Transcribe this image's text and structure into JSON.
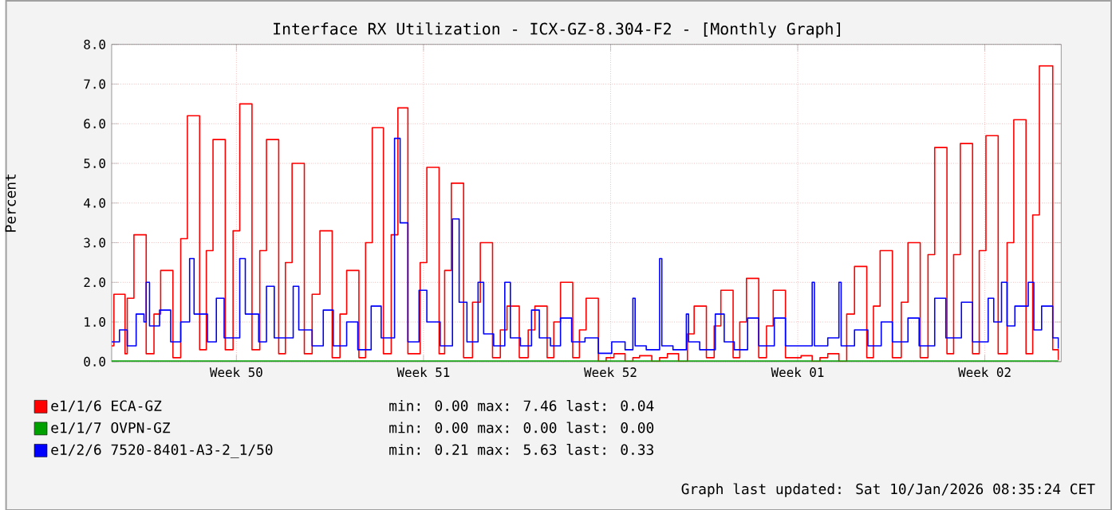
{
  "chart_data": {
    "type": "step",
    "title": "Interface RX Utilization - ICX-GZ-8.304-F2 - [Monthly Graph]",
    "ylabel": "Percent",
    "xlim": [
      "2025-12-05T20:00",
      "2026-01-10T08:35"
    ],
    "ylim": [
      0,
      8
    ],
    "xticks": [
      {
        "value": "2025-12-10T12:00",
        "label": "Week 50"
      },
      {
        "value": "2025-12-17T12:00",
        "label": "Week 51"
      },
      {
        "value": "2025-12-24T12:00",
        "label": "Week 52"
      },
      {
        "value": "2025-12-31T12:00",
        "label": "Week 01"
      },
      {
        "value": "2026-01-07T12:00",
        "label": "Week 02"
      }
    ],
    "yticks": [
      {
        "value": 0,
        "label": "0.0"
      },
      {
        "value": 1,
        "label": "1.0"
      },
      {
        "value": 2,
        "label": "2.0"
      },
      {
        "value": 3,
        "label": "3.0"
      },
      {
        "value": 4,
        "label": "4.0"
      },
      {
        "value": 5,
        "label": "5.0"
      },
      {
        "value": 6,
        "label": "6.0"
      },
      {
        "value": 7,
        "label": "7.0"
      },
      {
        "value": 8,
        "label": "8.0"
      }
    ],
    "grid": true,
    "legend": "bottom",
    "series": [
      {
        "name": "e1/1/6 ECA-GZ",
        "color": "#ff0000",
        "x": [
          "2025-12-05T20:00",
          "2025-12-05T22:00",
          "2025-12-06T08:00",
          "2025-12-06T10:00",
          "2025-12-06T16:00",
          "2025-12-07T03:00",
          "2025-12-07T10:00",
          "2025-12-07T16:00",
          "2025-12-08T03:00",
          "2025-12-08T10:00",
          "2025-12-08T16:00",
          "2025-12-09T03:00",
          "2025-12-09T09:00",
          "2025-12-09T15:00",
          "2025-12-10T02:00",
          "2025-12-10T09:00",
          "2025-12-10T15:00",
          "2025-12-11T02:00",
          "2025-12-11T09:00",
          "2025-12-11T15:00",
          "2025-12-12T02:00",
          "2025-12-12T08:00",
          "2025-12-12T14:00",
          "2025-12-13T01:00",
          "2025-12-13T08:00",
          "2025-12-13T15:00",
          "2025-12-14T02:00",
          "2025-12-14T09:00",
          "2025-12-14T15:00",
          "2025-12-15T02:00",
          "2025-12-15T08:00",
          "2025-12-15T14:00",
          "2025-12-16T00:00",
          "2025-12-16T07:00",
          "2025-12-16T13:00",
          "2025-12-16T22:00",
          "2025-12-17T09:00",
          "2025-12-17T15:00",
          "2025-12-18T02:00",
          "2025-12-18T07:00",
          "2025-12-18T13:00",
          "2025-12-19T00:00",
          "2025-12-19T08:00",
          "2025-12-19T15:00",
          "2025-12-20T02:00",
          "2025-12-20T09:00",
          "2025-12-20T15:00",
          "2025-12-21T02:00",
          "2025-12-21T10:00",
          "2025-12-21T16:00",
          "2025-12-22T03:00",
          "2025-12-22T09:00",
          "2025-12-22T15:00",
          "2025-12-23T02:00",
          "2025-12-23T08:00",
          "2025-12-23T14:00",
          "2025-12-24T01:00",
          "2025-12-24T08:00",
          "2025-12-24T15:00",
          "2025-12-25T01:00",
          "2025-12-25T08:00",
          "2025-12-25T14:00",
          "2025-12-26T01:00",
          "2025-12-26T08:00",
          "2025-12-26T15:00",
          "2025-12-27T01:00",
          "2025-12-27T09:00",
          "2025-12-27T15:00",
          "2025-12-28T02:00",
          "2025-12-28T09:00",
          "2025-12-28T15:00",
          "2025-12-29T02:00",
          "2025-12-29T08:00",
          "2025-12-29T14:00",
          "2025-12-30T01:00",
          "2025-12-30T08:00",
          "2025-12-30T14:00",
          "2025-12-31T01:00",
          "2025-12-31T08:00",
          "2025-12-31T15:00",
          "2026-01-01T01:00",
          "2026-01-01T08:00",
          "2026-01-01T15:00",
          "2026-01-02T01:00",
          "2026-01-02T08:00",
          "2026-01-02T15:00",
          "2026-01-03T02:00",
          "2026-01-03T08:00",
          "2026-01-03T14:00",
          "2026-01-04T01:00",
          "2026-01-04T09:00",
          "2026-01-04T15:00",
          "2026-01-05T02:00",
          "2026-01-05T09:00",
          "2026-01-05T15:00",
          "2026-01-06T02:00",
          "2026-01-06T08:00",
          "2026-01-06T14:00",
          "2026-01-07T01:00",
          "2026-01-07T07:00",
          "2026-01-07T13:00",
          "2026-01-08T00:00",
          "2026-01-08T08:00",
          "2026-01-08T14:00",
          "2026-01-09T01:00",
          "2026-01-09T07:00",
          "2026-01-09T13:00",
          "2026-01-10T01:00",
          "2026-01-10T06:00"
        ],
        "values": [
          0.4,
          1.7,
          0.2,
          1.6,
          3.2,
          0.2,
          1.2,
          2.3,
          0.1,
          3.1,
          6.2,
          0.3,
          2.8,
          5.6,
          0.3,
          3.3,
          6.5,
          0.3,
          2.8,
          5.6,
          0.2,
          2.5,
          5.0,
          0.2,
          1.7,
          3.3,
          0.1,
          1.2,
          2.3,
          0.1,
          3.0,
          5.9,
          0.2,
          3.2,
          6.4,
          0.2,
          2.5,
          4.9,
          0.2,
          2.3,
          4.5,
          0.1,
          1.5,
          3.0,
          0.1,
          0.8,
          1.4,
          0.1,
          0.8,
          1.4,
          0.1,
          1.0,
          2.0,
          0.1,
          0.8,
          1.6,
          0.0,
          0.1,
          0.2,
          0.0,
          0.1,
          0.15,
          0.0,
          0.1,
          0.2,
          0.0,
          0.7,
          1.4,
          0.1,
          0.9,
          1.8,
          0.1,
          1.0,
          2.1,
          0.1,
          0.9,
          1.8,
          0.1,
          0.1,
          0.15,
          0.0,
          0.1,
          0.2,
          0.0,
          1.2,
          2.4,
          0.1,
          1.4,
          2.8,
          0.1,
          1.5,
          3.0,
          0.1,
          2.7,
          5.4,
          0.2,
          2.7,
          5.5,
          0.2,
          2.8,
          5.7,
          0.2,
          3.0,
          6.1,
          0.2,
          3.7,
          7.46,
          0.3,
          0.04
        ]
      },
      {
        "name": "e1/1/7 OVPN-GZ",
        "color": "#00a000",
        "x": [
          "2025-12-05T20:00",
          "2026-01-10T06:00"
        ],
        "values": [
          0,
          0
        ]
      },
      {
        "name": "e1/2/6 7520-8401-A3-2_1/50",
        "color": "#0000ff",
        "x": [
          "2025-12-05T20:00",
          "2025-12-06T03:00",
          "2025-12-06T10:00",
          "2025-12-06T18:00",
          "2025-12-07T01:00",
          "2025-12-07T03:00",
          "2025-12-07T06:00",
          "2025-12-07T15:00",
          "2025-12-08T01:00",
          "2025-12-08T10:00",
          "2025-12-08T18:00",
          "2025-12-08T22:00",
          "2025-12-09T10:00",
          "2025-12-09T18:00",
          "2025-12-10T01:00",
          "2025-12-10T15:00",
          "2025-12-10T20:00",
          "2025-12-11T08:00",
          "2025-12-11T15:00",
          "2025-12-11T22:00",
          "2025-12-12T15:00",
          "2025-12-12T20:00",
          "2025-12-13T08:00",
          "2025-12-13T18:00",
          "2025-12-14T03:00",
          "2025-12-14T15:00",
          "2025-12-15T01:00",
          "2025-12-15T13:00",
          "2025-12-15T22:00",
          "2025-12-16T10:00",
          "2025-12-16T15:00",
          "2025-12-16T22:00",
          "2025-12-17T08:00",
          "2025-12-17T15:00",
          "2025-12-18T03:00",
          "2025-12-18T14:00",
          "2025-12-18T20:00",
          "2025-12-19T03:00",
          "2025-12-19T13:00",
          "2025-12-19T18:00",
          "2025-12-20T03:00",
          "2025-12-20T13:00",
          "2025-12-20T18:00",
          "2025-12-21T03:00",
          "2025-12-21T13:00",
          "2025-12-21T20:00",
          "2025-12-22T06:00",
          "2025-12-22T15:00",
          "2025-12-23T01:00",
          "2025-12-23T13:00",
          "2025-12-24T01:00",
          "2025-12-24T13:00",
          "2025-12-25T01:00",
          "2025-12-25T08:00",
          "2025-12-25T10:00",
          "2025-12-25T20:00",
          "2025-12-26T08:00",
          "2025-12-26T10:00",
          "2025-12-26T20:00",
          "2025-12-27T08:00",
          "2025-12-27T10:00",
          "2025-12-27T20:00",
          "2025-12-28T10:00",
          "2025-12-28T18:00",
          "2025-12-29T03:00",
          "2025-12-29T15:00",
          "2025-12-30T01:00",
          "2025-12-30T15:00",
          "2025-12-31T01:00",
          "2026-01-01T01:00",
          "2026-01-01T03:00",
          "2026-01-01T15:00",
          "2026-01-02T01:00",
          "2026-01-02T03:00",
          "2026-01-02T15:00",
          "2026-01-03T03:00",
          "2026-01-03T15:00",
          "2026-01-04T01:00",
          "2026-01-04T15:00",
          "2026-01-05T01:00",
          "2026-01-05T15:00",
          "2026-01-06T01:00",
          "2026-01-06T15:00",
          "2026-01-07T01:00",
          "2026-01-07T15:00",
          "2026-01-07T20:00",
          "2026-01-08T03:00",
          "2026-01-08T08:00",
          "2026-01-08T15:00",
          "2026-01-09T03:00",
          "2026-01-09T08:00",
          "2026-01-09T15:00",
          "2026-01-10T01:00",
          "2026-01-10T06:00"
        ],
        "values": [
          0.5,
          0.8,
          0.4,
          1.2,
          1.0,
          2.0,
          0.9,
          1.3,
          0.5,
          1.0,
          2.6,
          1.2,
          0.5,
          1.6,
          0.6,
          2.6,
          1.2,
          0.5,
          1.9,
          0.6,
          1.9,
          0.8,
          0.4,
          1.3,
          0.4,
          1.0,
          0.3,
          1.4,
          0.6,
          5.63,
          3.5,
          0.5,
          1.8,
          1.0,
          0.4,
          3.6,
          1.5,
          0.5,
          2.0,
          0.7,
          0.4,
          2.0,
          0.6,
          0.4,
          1.3,
          0.6,
          0.4,
          1.1,
          0.5,
          0.6,
          0.21,
          0.5,
          0.3,
          1.6,
          0.4,
          0.3,
          2.6,
          0.4,
          0.3,
          1.2,
          0.5,
          0.3,
          1.2,
          0.5,
          0.3,
          1.1,
          0.4,
          1.1,
          0.4,
          2.0,
          0.4,
          0.6,
          2.0,
          0.4,
          0.8,
          0.4,
          1.0,
          0.5,
          1.1,
          0.4,
          1.6,
          0.6,
          1.5,
          0.5,
          1.6,
          1.0,
          2.0,
          0.9,
          1.4,
          2.0,
          0.8,
          1.4,
          0.6,
          0.33
        ]
      }
    ],
    "annotations": [
      "min:      0.00   max:      7.46   last:      0.04",
      "min:      0.00   max:      0.00   last:      0.00",
      "min:      0.21   max:      5.63   last:      0.33",
      "Graph last updated: Sat 10/Jan/2026 08:35:24 CET"
    ]
  }
}
